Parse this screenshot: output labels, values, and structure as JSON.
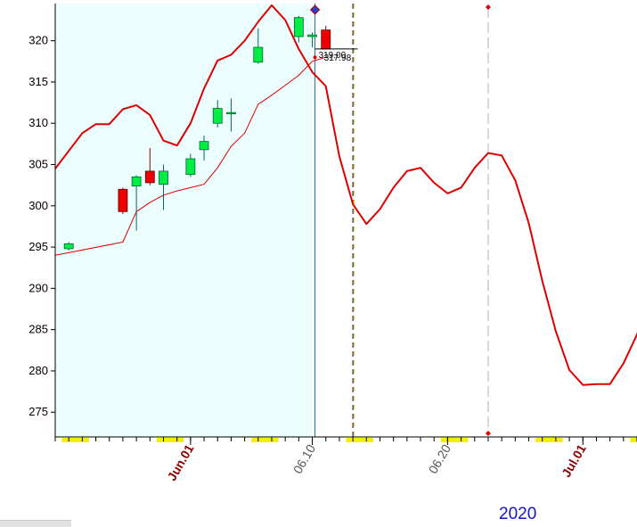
{
  "chart_data": {
    "type": "candlestick",
    "year_label": "2020",
    "xlim": [
      -1,
      42
    ],
    "ylim": [
      272,
      324.5
    ],
    "y_ticks": [
      275,
      280,
      285,
      290,
      295,
      300,
      305,
      310,
      315,
      320
    ],
    "x_ticks": [
      {
        "x": 9,
        "label": "Jun.01",
        "style": "month"
      },
      {
        "x": 18,
        "label": "06.10",
        "style": "day"
      },
      {
        "x": 28,
        "label": "06.20",
        "style": "day"
      },
      {
        "x": 38,
        "label": "Jul.01",
        "style": "month"
      }
    ],
    "shaded_region": [
      -1,
      18
    ],
    "weekend_x": [
      0,
      1,
      7,
      8,
      14,
      15,
      21,
      22,
      28,
      29,
      35,
      36,
      42
    ],
    "price_labels": [
      "319.00",
      "317.98"
    ],
    "candles": [
      {
        "x": 0,
        "open": 294.8,
        "high": 295.6,
        "low": 294.6,
        "close": 295.4
      },
      {
        "x": 4,
        "open": 302.0,
        "high": 302.2,
        "low": 299.0,
        "close": 299.3
      },
      {
        "x": 5,
        "open": 302.4,
        "high": 303.7,
        "low": 297.0,
        "close": 303.5
      },
      {
        "x": 6,
        "open": 304.2,
        "high": 307.0,
        "low": 302.5,
        "close": 302.8
      },
      {
        "x": 7,
        "open": 302.6,
        "high": 305.0,
        "low": 299.5,
        "close": 304.2
      },
      {
        "x": 9,
        "open": 303.8,
        "high": 306.3,
        "low": 303.5,
        "close": 305.7
      },
      {
        "x": 10,
        "open": 306.8,
        "high": 308.5,
        "low": 305.5,
        "close": 307.8
      },
      {
        "x": 11,
        "open": 310.0,
        "high": 312.8,
        "low": 309.5,
        "close": 311.8
      },
      {
        "x": 12,
        "open": 311.3,
        "high": 313.0,
        "low": 309.0,
        "close": 311.3
      },
      {
        "x": 14,
        "open": 317.4,
        "high": 321.5,
        "low": 317.2,
        "close": 319.2
      },
      {
        "x": 17,
        "open": 320.5,
        "high": 323.0,
        "low": 319.8,
        "close": 322.8
      },
      {
        "x": 18,
        "open": 320.5,
        "high": 321.0,
        "low": 319.2,
        "close": 320.7
      },
      {
        "x": 19,
        "open": 321.3,
        "high": 321.8,
        "low": 319.0,
        "close": 319.0
      }
    ],
    "series": [
      {
        "color": "#dd0000",
        "width": 2,
        "values": [
          [
            -1,
            304.5
          ],
          [
            1,
            308.8
          ],
          [
            2,
            309.9
          ],
          [
            3,
            309.9
          ],
          [
            4,
            311.7
          ],
          [
            5,
            312.2
          ],
          [
            6,
            311.0
          ],
          [
            7,
            307.9
          ],
          [
            8,
            307.3
          ],
          [
            9,
            310.0
          ],
          [
            10,
            314.2
          ],
          [
            11,
            317.6
          ],
          [
            12,
            318.3
          ],
          [
            13,
            320.0
          ],
          [
            14,
            322.3
          ],
          [
            15,
            324.3
          ],
          [
            16,
            322.5
          ],
          [
            17,
            319.0
          ],
          [
            18,
            316.2
          ],
          [
            19,
            314.5
          ],
          [
            20,
            306.0
          ],
          [
            21,
            300.2
          ],
          [
            22,
            297.8
          ],
          [
            23,
            299.6
          ],
          [
            24,
            302.2
          ],
          [
            25,
            304.2
          ],
          [
            26,
            304.6
          ],
          [
            27,
            302.8
          ],
          [
            28,
            301.5
          ],
          [
            29,
            302.2
          ],
          [
            30,
            304.6
          ],
          [
            31,
            306.4
          ],
          [
            32,
            306.1
          ],
          [
            33,
            303.1
          ],
          [
            34,
            297.9
          ],
          [
            35,
            290.9
          ],
          [
            36,
            284.8
          ],
          [
            37,
            280.1
          ],
          [
            38,
            278.3
          ],
          [
            39,
            278.4
          ],
          [
            40,
            278.4
          ],
          [
            41,
            280.9
          ],
          [
            42,
            284.4
          ],
          [
            43,
            289.1
          ]
        ]
      },
      {
        "color": "#dd0000",
        "width": 1,
        "values": [
          [
            -1,
            294.0
          ],
          [
            4,
            295.6
          ],
          [
            5,
            299.3
          ],
          [
            6,
            300.4
          ],
          [
            7,
            301.3
          ],
          [
            8,
            301.8
          ],
          [
            9,
            302.2
          ],
          [
            10,
            302.6
          ],
          [
            11,
            304.6
          ],
          [
            12,
            307.2
          ],
          [
            13,
            308.8
          ],
          [
            14,
            312.3
          ],
          [
            15,
            313.4
          ],
          [
            16,
            314.6
          ],
          [
            17,
            315.8
          ],
          [
            18,
            317.5
          ],
          [
            19,
            318.0
          ]
        ]
      }
    ],
    "current_x": 18.2,
    "dashed_black_x": 21,
    "dashed_yellow_x": 21.1,
    "dashed_gray_x": 31
  }
}
